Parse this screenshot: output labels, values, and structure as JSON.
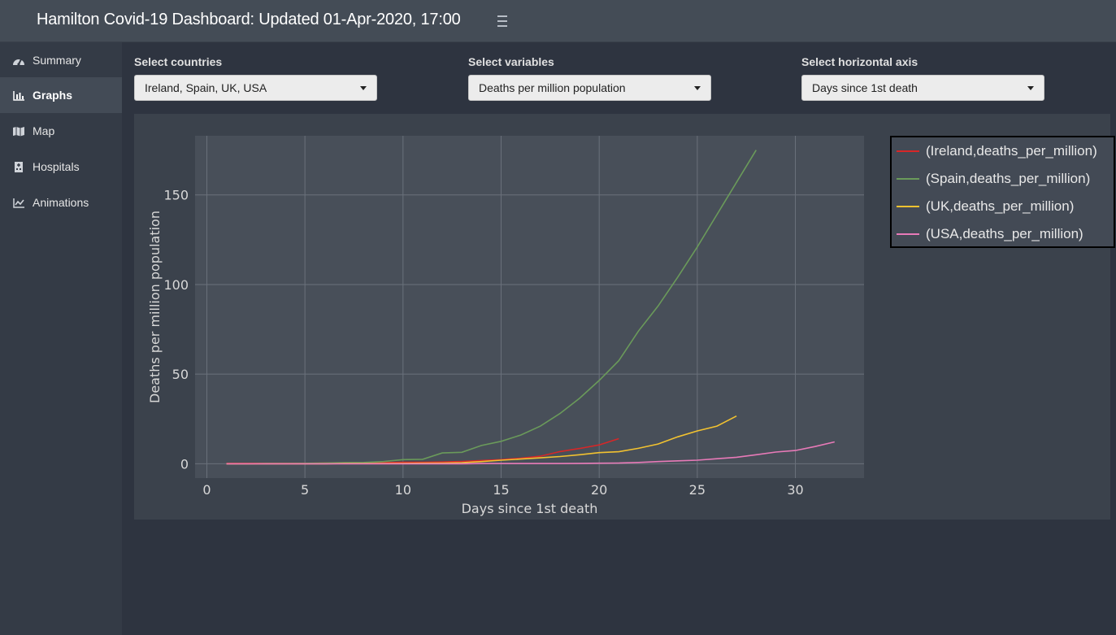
{
  "header": {
    "title": "Hamilton Covid-19 Dashboard: Updated 01-Apr-2020, 17:00"
  },
  "sidebar": {
    "items": [
      {
        "label": "Summary",
        "icon": "dashboard-icon"
      },
      {
        "label": "Graphs",
        "icon": "bar-chart-icon",
        "active": true
      },
      {
        "label": "Map",
        "icon": "map-icon"
      },
      {
        "label": "Hospitals",
        "icon": "hospital-icon"
      },
      {
        "label": "Animations",
        "icon": "line-chart-icon"
      }
    ]
  },
  "controls": {
    "countries": {
      "label": "Select countries",
      "value": "Ireland, Spain, UK, USA"
    },
    "variables": {
      "label": "Select variables",
      "value": "Deaths per million population"
    },
    "haxis": {
      "label": "Select horizontal axis",
      "value": "Days since 1st death"
    }
  },
  "chart_data": {
    "type": "line",
    "xlabel": "Days since 1st death",
    "ylabel": "Deaths per million population",
    "xlim": [
      -0.6,
      33.5
    ],
    "ylim": [
      -8,
      183
    ],
    "xticks": [
      0,
      5,
      10,
      15,
      20,
      25,
      30
    ],
    "yticks": [
      0,
      50,
      100,
      150
    ],
    "grid": true,
    "legend_position": "top-right",
    "series": [
      {
        "name": "(Ireland,deaths_per_million)",
        "color": "#d62728",
        "x": [
          1,
          2,
          3,
          4,
          5,
          6,
          7,
          8,
          9,
          10,
          11,
          12,
          13,
          14,
          15,
          16,
          17,
          18,
          19,
          20,
          21
        ],
        "y": [
          0.2,
          0.2,
          0.2,
          0.2,
          0.2,
          0.4,
          0.4,
          0.4,
          0.6,
          0.8,
          0.8,
          1.0,
          1.3,
          1.8,
          2.3,
          3.1,
          4.2,
          6.8,
          8.5,
          10.5,
          14.0
        ]
      },
      {
        "name": "(Spain,deaths_per_million)",
        "color": "#6a9a5a",
        "x": [
          1,
          2,
          3,
          4,
          5,
          6,
          7,
          8,
          9,
          10,
          11,
          12,
          13,
          14,
          15,
          16,
          17,
          18,
          19,
          20,
          21,
          22,
          23,
          24,
          25,
          26,
          27,
          28
        ],
        "y": [
          0.0,
          0.0,
          0.1,
          0.1,
          0.2,
          0.4,
          0.6,
          0.7,
          1.2,
          2.3,
          2.5,
          6.0,
          6.4,
          10.2,
          12.5,
          16.0,
          21.0,
          28.0,
          36.5,
          46.5,
          57.5,
          74.0,
          88.0,
          104.0,
          121.0,
          139.0,
          157.0,
          175.0
        ]
      },
      {
        "name": "(UK,deaths_per_million)",
        "color": "#f2c230",
        "x": [
          1,
          2,
          3,
          4,
          5,
          6,
          7,
          8,
          9,
          10,
          11,
          12,
          13,
          14,
          15,
          16,
          17,
          18,
          19,
          20,
          21,
          22,
          23,
          24,
          25,
          26,
          27
        ],
        "y": [
          0.0,
          0.0,
          0.0,
          0.0,
          0.0,
          0.0,
          0.1,
          0.1,
          0.1,
          0.2,
          0.3,
          0.4,
          0.6,
          1.2,
          2.0,
          2.6,
          3.3,
          4.0,
          5.0,
          6.2,
          6.7,
          8.6,
          11.0,
          15.0,
          18.3,
          21.0,
          26.6
        ]
      },
      {
        "name": "(USA,deaths_per_million)",
        "color": "#e87ab8",
        "x": [
          1,
          2,
          3,
          4,
          5,
          6,
          7,
          8,
          9,
          10,
          11,
          12,
          13,
          14,
          15,
          16,
          17,
          18,
          19,
          20,
          21,
          22,
          23,
          24,
          25,
          26,
          27,
          28,
          29,
          30,
          31,
          32
        ],
        "y": [
          0.0,
          0.0,
          0.0,
          0.0,
          0.0,
          0.0,
          0.0,
          0.0,
          0.0,
          0.0,
          0.0,
          0.0,
          0.0,
          0.1,
          0.1,
          0.1,
          0.1,
          0.1,
          0.2,
          0.3,
          0.4,
          0.7,
          1.2,
          1.6,
          2.0,
          2.8,
          3.6,
          5.0,
          6.5,
          7.4,
          9.6,
          12.2
        ]
      }
    ]
  }
}
